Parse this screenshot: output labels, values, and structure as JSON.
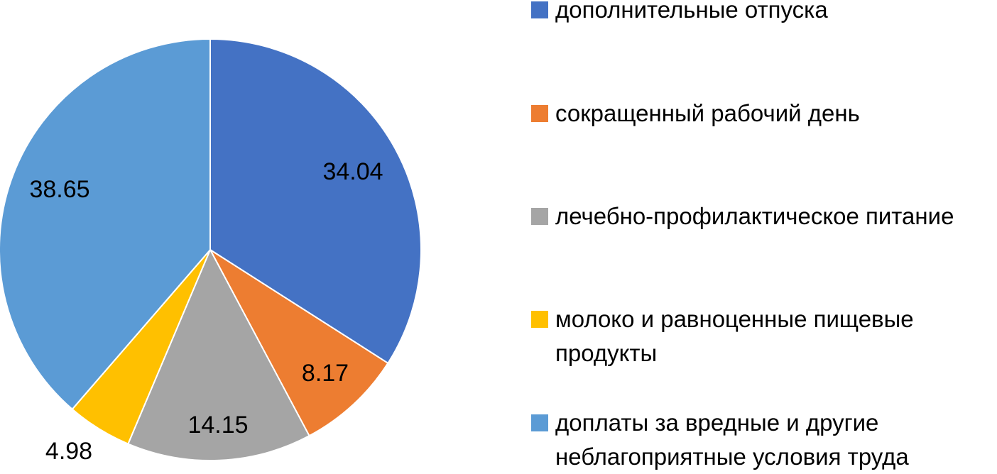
{
  "chart_data": {
    "type": "pie",
    "title": "",
    "legend_position": "right",
    "start_angle_deg": 0,
    "direction": "clockwise",
    "slices": [
      {
        "label": "дополнительные отпуска",
        "value": 34.04,
        "display": "34.04",
        "color": "#4472C4"
      },
      {
        "label": "сокращенный рабочий день",
        "value": 8.17,
        "display": "8.17",
        "color": "#ED7D31"
      },
      {
        "label": "лечебно-профилактическое питание",
        "value": 14.15,
        "display": "14.15",
        "color": "#A5A5A5"
      },
      {
        "label": "молоко и равноценные пищевые продукты",
        "value": 4.98,
        "display": "4.98",
        "color": "#FFC000"
      },
      {
        "label": "доплаты за вредные и другие неблагоприятные условия труда",
        "value": 38.65,
        "display": "38.65",
        "color": "#5B9BD5"
      }
    ]
  },
  "legend": {
    "items": [
      {
        "text": "дополнительные отпуска",
        "color": "#4472C4"
      },
      {
        "text": "сокращенный рабочий день",
        "color": "#ED7D31"
      },
      {
        "text": "лечебно-профилактическое питание",
        "color": "#A5A5A5"
      },
      {
        "text": "молоко и равноценные пищевые\nпродукты",
        "color": "#FFC000"
      },
      {
        "text": "доплаты за вредные и другие\nнеблагоприятные условия труда",
        "color": "#5B9BD5"
      }
    ]
  }
}
